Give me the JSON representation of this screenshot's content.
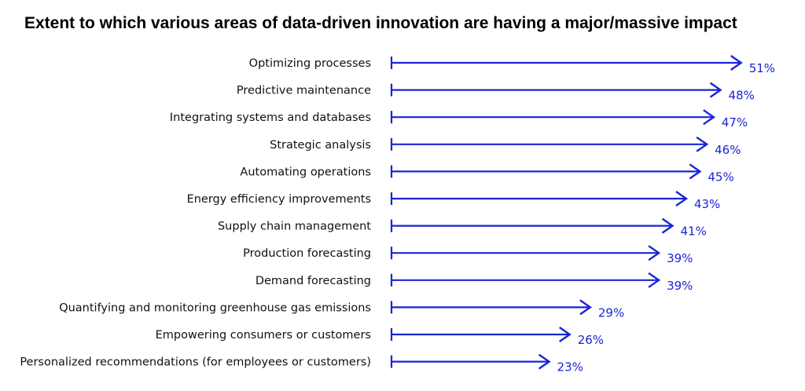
{
  "chart_data": {
    "type": "bar",
    "title": "Extent to which various areas of data-driven innovation are having a major/massive impact",
    "categories": [
      "Optimizing processes",
      "Predictive maintenance",
      "Integrating systems and databases",
      "Strategic analysis",
      "Automating operations",
      "Energy efficiency improvements",
      "Supply chain management",
      "Production forecasting",
      "Demand forecasting",
      "Quantifying and monitoring greenhouse gas emissions",
      "Empowering consumers or customers",
      "Personalized recommendations (for employees or customers)"
    ],
    "values": [
      51,
      48,
      47,
      46,
      45,
      43,
      41,
      39,
      39,
      29,
      26,
      23
    ],
    "value_labels": [
      "51%",
      "48%",
      "47%",
      "46%",
      "45%",
      "43%",
      "41%",
      "39%",
      "39%",
      "29%",
      "26%",
      "23%"
    ],
    "unit": "%",
    "orientation": "horizontal",
    "mark_style": "arrow",
    "color": "#1a24d6",
    "grid": false,
    "legend": "none"
  }
}
